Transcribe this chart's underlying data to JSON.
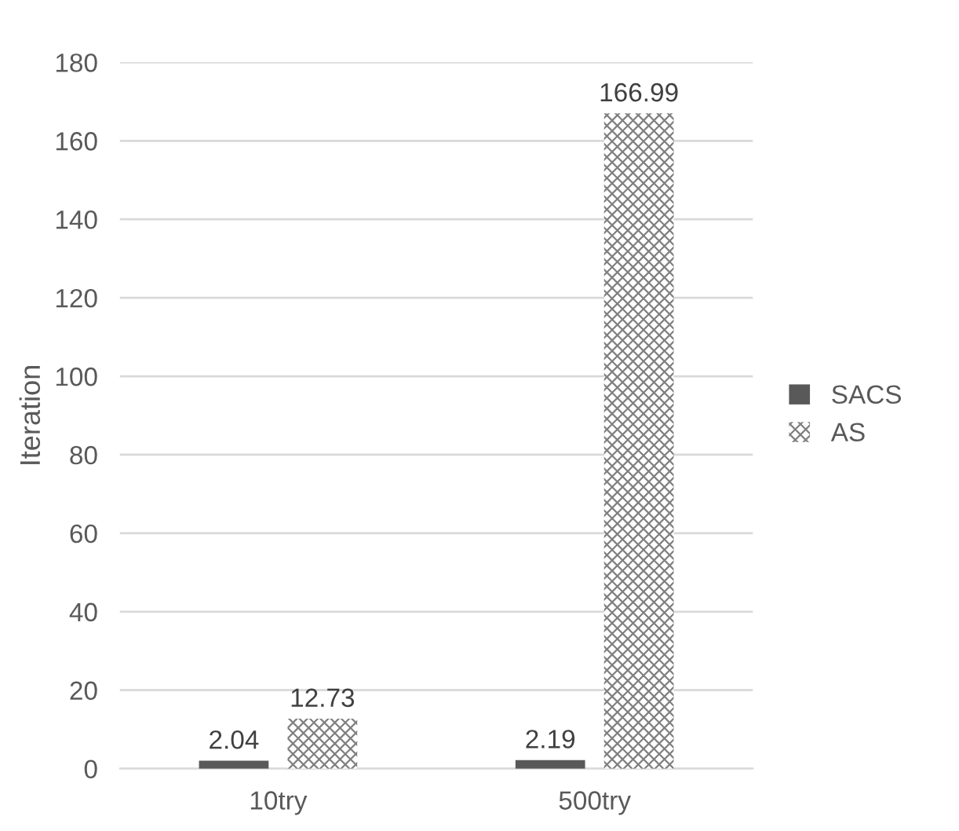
{
  "chart_data": {
    "type": "bar",
    "ylabel": "Iteration",
    "categories": [
      "10try",
      "500try"
    ],
    "series": [
      {
        "name": "SACS",
        "color": "#595959",
        "values": [
          2.04,
          2.19
        ]
      },
      {
        "name": "AS",
        "color": "#7f7f7f",
        "values": [
          12.73,
          166.99
        ]
      }
    ],
    "ylim": [
      0,
      180
    ],
    "yticks": [
      0,
      20,
      40,
      60,
      80,
      100,
      120,
      140,
      160,
      180
    ],
    "grid": "y",
    "legend": "right",
    "data_labels": true
  }
}
